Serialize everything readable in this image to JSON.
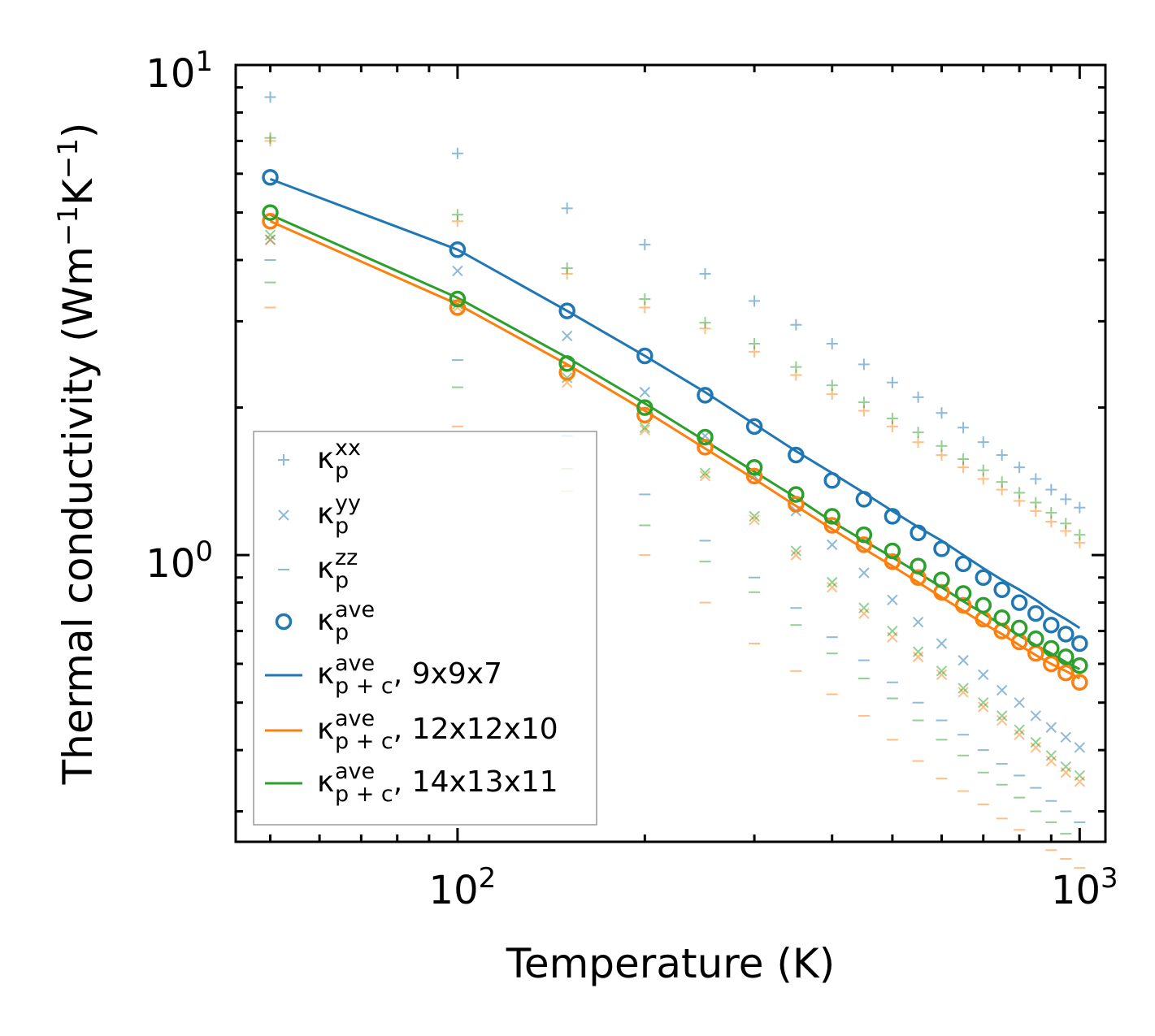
{
  "chart_data": {
    "type": "scatter",
    "title": "",
    "xlabel": "Temperature (K)",
    "ylabel": "Thermal conductivity (Wm",
    "ylabel_sup1": "−1",
    "ylabel_mid": "K",
    "ylabel_sup2": "−1",
    "ylabel_end": ")",
    "xscale": "log",
    "yscale": "log",
    "xlim": [
      44,
      1100
    ],
    "ylim": [
      0.26,
      10
    ],
    "x_ticks": [
      {
        "base": "10",
        "exp": "2",
        "value": 100
      },
      {
        "base": "10",
        "exp": "3",
        "value": 1000
      }
    ],
    "y_ticks": [
      {
        "base": "10",
        "exp": "0",
        "value": 1
      },
      {
        "base": "10",
        "exp": "1",
        "value": 10
      }
    ],
    "colors": {
      "blue": "#1f77b4",
      "orange": "#ff7f0e",
      "green": "#2ca02c"
    },
    "temperatures": [
      50,
      100,
      150,
      200,
      250,
      300,
      350,
      400,
      450,
      500,
      550,
      600,
      650,
      700,
      750,
      800,
      850,
      900,
      950,
      1000
    ],
    "series": [
      {
        "name": "xx 9x9x7",
        "marker": "plus",
        "color": "#1f77b4",
        "values": [
          8.6,
          6.6,
          5.1,
          4.3,
          3.75,
          3.3,
          2.95,
          2.7,
          2.45,
          2.25,
          2.1,
          1.95,
          1.82,
          1.7,
          1.6,
          1.51,
          1.43,
          1.36,
          1.3,
          1.25
        ]
      },
      {
        "name": "xx 12x12x10",
        "marker": "plus",
        "color": "#ff7f0e",
        "values": [
          7.0,
          4.8,
          3.75,
          3.2,
          2.9,
          2.6,
          2.33,
          2.13,
          1.97,
          1.83,
          1.7,
          1.6,
          1.51,
          1.43,
          1.36,
          1.29,
          1.23,
          1.17,
          1.12,
          1.06
        ]
      },
      {
        "name": "xx 14x13x11",
        "marker": "plus",
        "color": "#2ca02c",
        "values": [
          7.1,
          4.95,
          3.85,
          3.33,
          2.98,
          2.7,
          2.42,
          2.22,
          2.05,
          1.9,
          1.78,
          1.67,
          1.57,
          1.49,
          1.41,
          1.34,
          1.28,
          1.22,
          1.16,
          1.1
        ]
      },
      {
        "name": "yy 9x9x7",
        "marker": "cross",
        "color": "#1f77b4",
        "values": [
          4.4,
          3.8,
          2.8,
          2.15,
          1.75,
          1.45,
          1.23,
          1.05,
          0.92,
          0.81,
          0.73,
          0.66,
          0.61,
          0.57,
          0.53,
          0.5,
          0.47,
          0.445,
          0.425,
          0.405
        ]
      },
      {
        "name": "yy 12x12x10",
        "marker": "cross",
        "color": "#ff7f0e",
        "values": [
          4.4,
          3.2,
          2.25,
          1.8,
          1.45,
          1.18,
          1.0,
          0.86,
          0.76,
          0.68,
          0.62,
          0.57,
          0.525,
          0.49,
          0.46,
          0.43,
          0.405,
          0.38,
          0.36,
          0.345
        ]
      },
      {
        "name": "yy 14x13x11",
        "marker": "cross",
        "color": "#2ca02c",
        "values": [
          4.5,
          3.25,
          2.3,
          1.82,
          1.47,
          1.2,
          1.02,
          0.88,
          0.78,
          0.7,
          0.635,
          0.58,
          0.535,
          0.5,
          0.47,
          0.44,
          0.415,
          0.39,
          0.37,
          0.355
        ]
      },
      {
        "name": "zz 9x9x7",
        "marker": "dash",
        "color": "#1f77b4",
        "values": [
          4.0,
          2.5,
          1.75,
          1.33,
          1.07,
          0.9,
          0.78,
          0.68,
          0.61,
          0.55,
          0.5,
          0.46,
          0.43,
          0.4,
          0.375,
          0.355,
          0.335,
          0.315,
          0.3,
          0.285
        ]
      },
      {
        "name": "zz 12x12x10",
        "marker": "dash",
        "color": "#ff7f0e",
        "values": [
          3.2,
          1.83,
          1.35,
          1.0,
          0.8,
          0.66,
          0.58,
          0.52,
          0.47,
          0.42,
          0.38,
          0.35,
          0.33,
          0.31,
          0.29,
          0.275,
          0.26,
          0.25,
          0.24,
          0.23
        ]
      },
      {
        "name": "zz 14x13x11",
        "marker": "dash",
        "color": "#2ca02c",
        "values": [
          3.6,
          2.2,
          1.5,
          1.15,
          0.97,
          0.84,
          0.72,
          0.63,
          0.56,
          0.51,
          0.46,
          0.42,
          0.39,
          0.36,
          0.34,
          0.32,
          0.3,
          0.285,
          0.27,
          0.26
        ]
      },
      {
        "name": "ave 9x9x7",
        "marker": "circle",
        "color": "#1f77b4",
        "values": [
          5.9,
          4.2,
          3.15,
          2.55,
          2.12,
          1.83,
          1.6,
          1.42,
          1.3,
          1.2,
          1.11,
          1.03,
          0.96,
          0.9,
          0.85,
          0.8,
          0.76,
          0.72,
          0.69,
          0.66
        ]
      },
      {
        "name": "ave 12x12x10",
        "marker": "circle",
        "color": "#ff7f0e",
        "values": [
          4.8,
          3.2,
          2.36,
          1.93,
          1.66,
          1.45,
          1.27,
          1.15,
          1.05,
          0.97,
          0.9,
          0.84,
          0.79,
          0.74,
          0.7,
          0.665,
          0.63,
          0.6,
          0.575,
          0.55
        ]
      },
      {
        "name": "ave 14x13x11",
        "marker": "circle",
        "color": "#2ca02c",
        "values": [
          5.0,
          3.33,
          2.46,
          2.0,
          1.74,
          1.51,
          1.33,
          1.2,
          1.1,
          1.02,
          0.95,
          0.89,
          0.835,
          0.79,
          0.745,
          0.71,
          0.675,
          0.645,
          0.62,
          0.595
        ]
      },
      {
        "name": "p+c 9x9x7",
        "marker": "line",
        "color": "#1f77b4",
        "values": [
          5.85,
          4.2,
          3.15,
          2.55,
          2.15,
          1.85,
          1.63,
          1.47,
          1.34,
          1.23,
          1.14,
          1.07,
          1.0,
          0.94,
          0.89,
          0.85,
          0.81,
          0.77,
          0.74,
          0.71
        ]
      },
      {
        "name": "p+c 12x12x10",
        "marker": "line",
        "color": "#ff7f0e",
        "values": [
          4.8,
          3.25,
          2.45,
          1.97,
          1.65,
          1.43,
          1.26,
          1.13,
          1.03,
          0.95,
          0.88,
          0.82,
          0.77,
          0.725,
          0.69,
          0.655,
          0.625,
          0.6,
          0.58,
          0.56
        ]
      },
      {
        "name": "p+c 14x13x11",
        "marker": "line",
        "color": "#2ca02c",
        "values": [
          4.95,
          3.35,
          2.53,
          2.04,
          1.71,
          1.48,
          1.31,
          1.17,
          1.07,
          0.99,
          0.92,
          0.86,
          0.805,
          0.76,
          0.72,
          0.685,
          0.655,
          0.63,
          0.605,
          0.585
        ]
      }
    ],
    "legend": {
      "position": "lower-left",
      "entries": [
        {
          "marker": "plus",
          "color": "#1f77b4",
          "sym": "κ",
          "sup": "xx",
          "sub": "p",
          "suffix": ""
        },
        {
          "marker": "cross",
          "color": "#1f77b4",
          "sym": "κ",
          "sup": "yy",
          "sub": "p",
          "suffix": ""
        },
        {
          "marker": "dash",
          "color": "#1f77b4",
          "sym": "κ",
          "sup": "zz",
          "sub": "p",
          "suffix": ""
        },
        {
          "marker": "circle",
          "color": "#1f77b4",
          "sym": "κ",
          "sup": "ave",
          "sub": "p",
          "suffix": ""
        },
        {
          "marker": "line",
          "color": "#1f77b4",
          "sym": "κ",
          "sup": "ave",
          "sub": "p + c",
          "suffix": ", 9x9x7"
        },
        {
          "marker": "line",
          "color": "#ff7f0e",
          "sym": "κ",
          "sup": "ave",
          "sub": "p + c",
          "suffix": ", 12x12x10"
        },
        {
          "marker": "line",
          "color": "#2ca02c",
          "sym": "κ",
          "sup": "ave",
          "sub": "p + c",
          "suffix": ", 14x13x11"
        }
      ]
    }
  }
}
